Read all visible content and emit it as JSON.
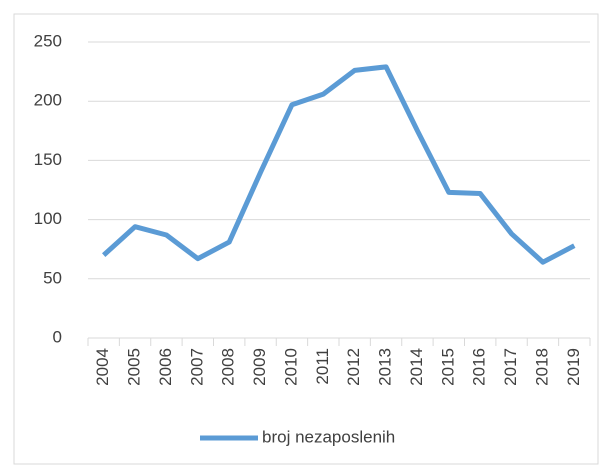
{
  "chart_data": {
    "type": "line",
    "categories": [
      "2004",
      "2005",
      "2006",
      "2007",
      "2008",
      "2009",
      "2010",
      "2011",
      "2012",
      "2013",
      "2014",
      "2015",
      "2016",
      "2017",
      "2018",
      "2019"
    ],
    "series": [
      {
        "name": "broj nezaposlenih",
        "color": "#5b9bd5",
        "values": [
          70,
          94,
          87,
          67,
          81,
          140,
          197,
          206,
          226,
          229,
          175,
          123,
          122,
          88,
          64,
          78
        ]
      }
    ],
    "ylim": [
      0,
      250
    ],
    "yticks": [
      0,
      50,
      100,
      150,
      200,
      250
    ],
    "grid": true,
    "legend": "bottom"
  }
}
